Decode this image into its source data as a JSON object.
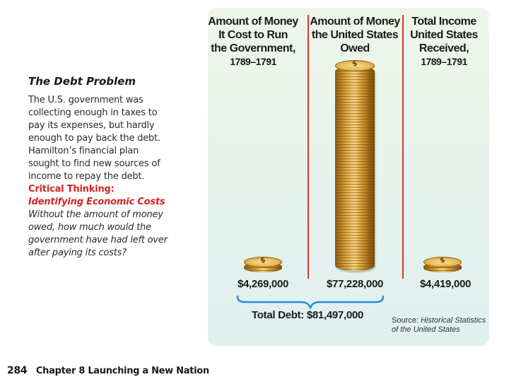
{
  "caption": {
    "title": "The Debt Problem",
    "body": "The U.S. government was collecting enough in taxes to pay its expenses, but hardly enough to pay back the debt. Hamilton’s financial plan sought to find new sources of income to repay the debt.",
    "critical_label": "Critical Thinking:",
    "critical_skill": "Identifying Economic Costs",
    "critical_question": "Without the amount of money owed, how much would the government have had left over after paying its costs?"
  },
  "chart_data": {
    "type": "bar",
    "title": "",
    "categories": [
      "Amount of Money It Cost to Run the Government, 1789–1791",
      "Amount of Money the United States Owed",
      "Total Income United States Received, 1789–1791"
    ],
    "values": [
      4269000,
      77228000,
      4419000
    ],
    "value_labels": [
      "$4,269,000",
      "$77,228,000",
      "$4,419,000"
    ],
    "headers": [
      {
        "line1": "Amount of Money",
        "line2": "It Cost to Run",
        "line3": "the Government,",
        "years": "1789–1791"
      },
      {
        "line1": "Amount of Money",
        "line2": "the United States",
        "line3": "Owed",
        "years": ""
      },
      {
        "line1": "Total Income",
        "line2": "United States",
        "line3": "Received,",
        "years": "1789–1791"
      }
    ],
    "coin_symbol": "$",
    "total_label": "Total Debt: $81,497,000",
    "source_label": "Source:",
    "source_title": "Historical Statistics of the United States"
  },
  "footer": {
    "page_number": "284",
    "chapter": "Chapter 8  Launching a New Nation"
  },
  "colors": {
    "accent_red": "#d22424",
    "divider_red": "#e0342e",
    "bracket_blue": "#2a8ad8",
    "gold": "#e7bb58"
  }
}
